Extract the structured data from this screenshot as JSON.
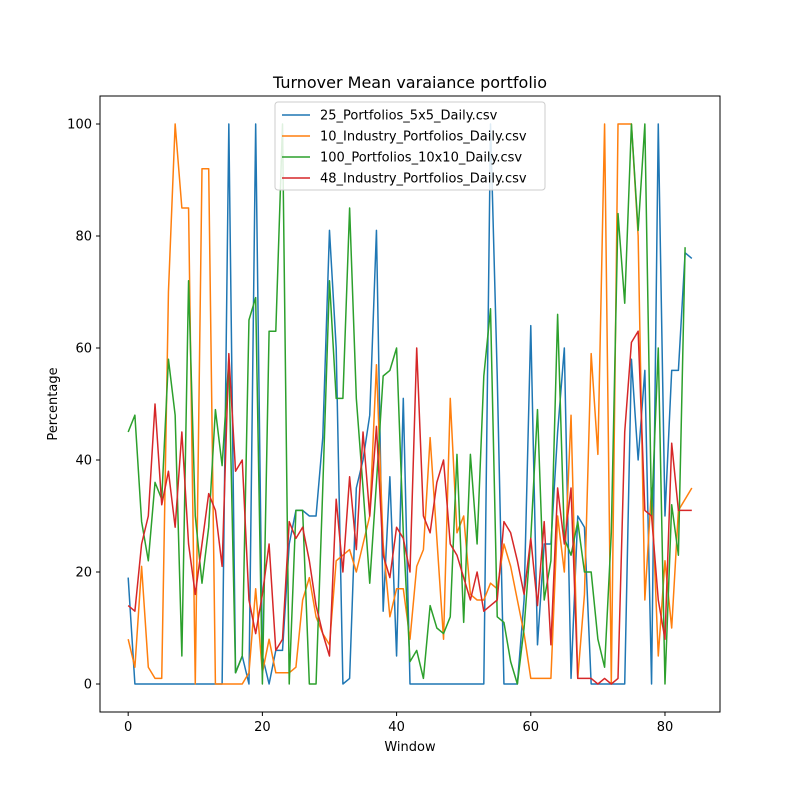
{
  "chart_data": {
    "type": "line",
    "title": "Turnover Mean varaiance portfolio",
    "xlabel": "Window",
    "ylabel": "Percentage",
    "xlim": [
      -4.2,
      88.2
    ],
    "ylim": [
      -5,
      105
    ],
    "xticks": [
      0,
      20,
      40,
      60,
      80
    ],
    "yticks": [
      0,
      20,
      40,
      60,
      80,
      100
    ],
    "grid": false,
    "legend_position": "top-center",
    "series": [
      {
        "name": "25_Portfolios_5x5_Daily.csv",
        "color": "#1f77b4",
        "values": [
          19,
          0,
          0,
          0,
          0,
          0,
          0,
          0,
          0,
          0,
          0,
          0,
          0,
          0,
          0,
          100,
          2,
          5,
          0,
          100,
          5,
          0,
          6,
          6,
          25,
          31,
          31,
          30,
          30,
          44,
          81,
          60,
          0,
          1,
          35,
          40,
          48,
          81,
          13,
          37,
          5,
          51,
          0,
          0,
          0,
          0,
          0,
          0,
          0,
          0,
          0,
          0,
          0,
          0,
          100,
          55,
          0,
          0,
          0,
          15,
          64,
          7,
          25,
          25,
          45,
          60,
          1,
          30,
          28,
          0,
          0,
          0,
          0,
          0,
          0,
          58,
          40,
          56,
          0,
          100,
          30,
          56,
          56,
          77,
          76
        ]
      },
      {
        "name": "10_Industry_Portfolios_Daily.csv",
        "color": "#ff7f0e",
        "values": [
          8,
          3,
          21,
          3,
          1,
          1,
          70,
          100,
          85,
          85,
          0,
          92,
          92,
          0,
          0,
          0,
          0,
          0,
          2,
          17,
          2,
          8,
          2,
          2,
          2,
          3,
          15,
          19,
          12,
          9,
          7,
          22,
          23,
          24,
          20,
          25,
          30,
          57,
          25,
          12,
          17,
          17,
          8,
          21,
          24,
          44,
          26,
          8,
          51,
          27,
          30,
          16,
          15,
          15,
          18,
          17,
          25,
          21,
          15,
          9,
          1,
          1,
          1,
          1,
          30,
          20,
          48,
          1,
          16,
          59,
          41,
          100,
          0,
          100,
          100,
          100,
          80,
          15,
          35,
          5,
          22,
          10,
          31,
          33,
          35
        ]
      },
      {
        "name": "100_Portfolios_10x10_Daily.csv",
        "color": "#2ca02c",
        "values": [
          45,
          48,
          29,
          22,
          36,
          33,
          58,
          48,
          5,
          72,
          30,
          18,
          28,
          49,
          39,
          58,
          2,
          5,
          65,
          69,
          0,
          63,
          63,
          100,
          0,
          31,
          31,
          0,
          0,
          35,
          72,
          51,
          51,
          85,
          51,
          35,
          18,
          36,
          55,
          56,
          60,
          27,
          4,
          6,
          1,
          14,
          10,
          9,
          12,
          41,
          11,
          41,
          25,
          55,
          67,
          12,
          11,
          4,
          0,
          10,
          26,
          49,
          15,
          22,
          66,
          26,
          23,
          29,
          20,
          20,
          8,
          3,
          27,
          84,
          68,
          100,
          81,
          100,
          30,
          60,
          0,
          32,
          23,
          78
        ]
      },
      {
        "name": "48_Industry_Portfolios_Daily.csv",
        "color": "#d62728",
        "values": [
          14,
          13,
          25,
          30,
          50,
          32,
          38,
          28,
          45,
          25,
          16,
          25,
          34,
          31,
          21,
          59,
          38,
          40,
          15,
          9,
          16,
          25,
          6,
          8,
          29,
          26,
          28,
          22,
          14,
          9,
          5,
          33,
          20,
          37,
          24,
          45,
          30,
          46,
          23,
          19,
          28,
          26,
          20,
          60,
          30,
          27,
          36,
          40,
          25,
          23,
          19,
          15,
          20,
          13,
          14,
          15,
          29,
          27,
          22,
          16,
          26,
          14,
          29,
          7,
          35,
          25,
          35,
          1,
          1,
          1,
          0,
          1,
          0,
          1,
          45,
          61,
          63,
          31,
          30,
          15,
          8,
          43,
          31,
          31,
          31
        ]
      }
    ]
  }
}
